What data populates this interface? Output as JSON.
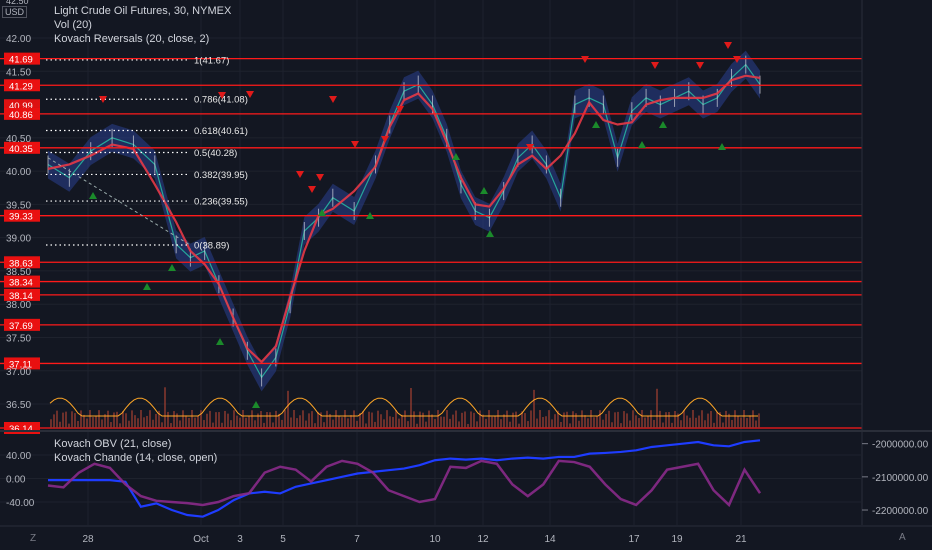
{
  "header": {
    "title": "Light Crude Oil Futures, 30, NYMEX",
    "indicators": [
      "Vol (20)",
      "Kovach Reversals (20, close, 2)"
    ],
    "currency": "USD"
  },
  "lower_pane": {
    "indicators": [
      "Kovach OBV (21, close)",
      "Kovach Chande (14, close, open)"
    ]
  },
  "buttons": {
    "log_scale": "Z",
    "auto_scale": "A"
  },
  "colors": {
    "background": "#131722",
    "level_line": "#ff1a1a",
    "fib_line": "#ffffff",
    "price_candles": "#26a69a",
    "band": "#2a3f8f",
    "reversal_line": "#e53946",
    "volume": "#8b3a2f",
    "volume_ma": "#ffa726",
    "obv": "#1e3cff",
    "chande": "#8a2a8a",
    "up_marker": "#1b8a2b",
    "down_marker": "#e01a1a"
  },
  "chart_data": {
    "type": "line",
    "title": "Light Crude Oil Futures, 30, NYMEX",
    "x_tick_labels": [
      "28",
      "Oct",
      "3",
      "5",
      "7",
      "10",
      "12",
      "14",
      "17",
      "19",
      "21"
    ],
    "price_axis": {
      "range": [
        36.14,
        42.05
      ],
      "tick_labels": [
        "42.00",
        "41.50",
        "40.50",
        "40.00",
        "39.50",
        "39.00",
        "38.50",
        "38.00",
        "37.50",
        "37.00",
        "36.50"
      ],
      "partial_top_label": "42.50"
    },
    "horizontal_levels": [
      41.69,
      41.29,
      40.86,
      40.35,
      39.33,
      38.63,
      38.34,
      38.14,
      37.69,
      37.11,
      36.14
    ],
    "hidden_level_label": "40.99",
    "fibonacci": [
      {
        "label": "1(41.67)",
        "value": 41.67
      },
      {
        "label": "0.786(41.08)",
        "value": 41.08
      },
      {
        "label": "0.618(40.61)",
        "value": 40.61
      },
      {
        "label": "0.5(40.28)",
        "value": 40.28
      },
      {
        "label": "0.382(39.95)",
        "value": 39.95
      },
      {
        "label": "0.236(39.55)",
        "value": 39.55
      },
      {
        "label": "0(38.89)",
        "value": 38.89
      }
    ],
    "price_series": {
      "x_index": [
        0,
        3,
        6,
        9,
        12,
        15,
        18,
        20,
        22,
        24,
        26,
        28,
        30,
        32,
        34,
        36,
        38,
        40,
        43,
        46,
        48,
        50,
        52,
        54,
        56,
        58,
        60,
        62,
        64,
        66,
        68,
        70,
        72,
        74,
        76,
        78,
        80,
        82,
        84,
        86,
        88,
        90,
        92,
        94,
        96,
        98,
        100
      ],
      "close": [
        40.1,
        39.9,
        40.3,
        40.5,
        40.4,
        40.1,
        38.9,
        38.7,
        38.8,
        38.3,
        37.8,
        37.3,
        36.9,
        37.2,
        38.0,
        39.1,
        39.3,
        39.6,
        39.4,
        40.1,
        40.7,
        41.2,
        41.3,
        41.0,
        40.5,
        39.8,
        39.4,
        39.3,
        39.7,
        40.2,
        40.4,
        40.1,
        39.6,
        41.0,
        41.1,
        41.0,
        40.2,
        40.9,
        41.1,
        41.0,
        41.1,
        41.2,
        41.0,
        41.1,
        41.4,
        41.6,
        41.3
      ]
    },
    "lower_axis": {
      "left_ticks": [
        40.0,
        0.0,
        -40.0
      ],
      "left_tick_labels": [
        "40.00",
        "0.00",
        "-40.00"
      ],
      "right_ticks": [
        -2000000,
        -2100000,
        -2200000
      ],
      "right_tick_labels": [
        "-2000000.00",
        "-2100000.00",
        "-2200000.00"
      ]
    },
    "obv_series": [
      -2110000,
      -2110000,
      -2110000,
      -2110000,
      -2110000,
      -2115000,
      -2190000,
      -2180000,
      -2200000,
      -2215000,
      -2220000,
      -2200000,
      -2170000,
      -2150000,
      -2145000,
      -2150000,
      -2130000,
      -2120000,
      -2110000,
      -2100000,
      -2090000,
      -2085000,
      -2080000,
      -2075000,
      -2065000,
      -2050000,
      -2045000,
      -2048000,
      -2045000,
      -2050000,
      -2045000,
      -2042000,
      -2045000,
      -2040000,
      -2040000,
      -2030000,
      -2028000,
      -2025000,
      -2020000,
      -2010000,
      -2005000,
      -2000000,
      -1995000,
      -2005000,
      -2008000,
      -1995000,
      -1990000
    ],
    "chande_series": [
      -12,
      -15,
      10,
      25,
      18,
      -10,
      -30,
      -38,
      -40,
      -42,
      -45,
      -40,
      -30,
      -25,
      10,
      20,
      15,
      -5,
      20,
      30,
      25,
      10,
      -20,
      -30,
      -40,
      -35,
      20,
      18,
      30,
      25,
      -10,
      -30,
      -10,
      30,
      28,
      20,
      -10,
      -35,
      -45,
      -20,
      15,
      20,
      25,
      -20,
      -45,
      15,
      -25
    ]
  }
}
